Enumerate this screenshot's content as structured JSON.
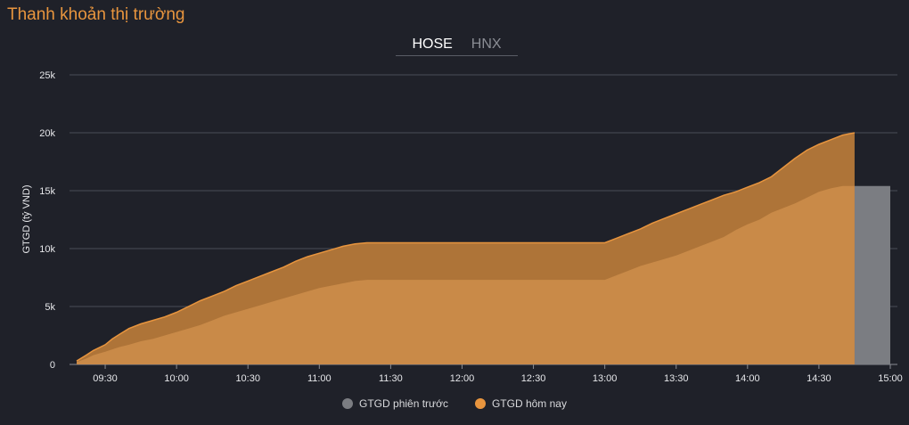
{
  "title": "Thanh khoản thị trường",
  "tabs": [
    {
      "label": "HOSE",
      "active": true
    },
    {
      "label": "HNX",
      "active": false
    }
  ],
  "colors": {
    "today": "#e8953e",
    "today_area": "#c98a48",
    "today_band": "#ae7438",
    "previous": "#7b7d82"
  },
  "chart_data": {
    "type": "area",
    "ylabel": "GTGD (tỷ VND)",
    "ylim": [
      0,
      25000
    ],
    "yticks": [
      0,
      5000,
      10000,
      15000,
      20000,
      25000
    ],
    "ytick_labels": [
      "0",
      "5k",
      "10k",
      "15k",
      "20k",
      "25k"
    ],
    "xlim": [
      555,
      903
    ],
    "xticks": [
      570,
      600,
      630,
      660,
      690,
      720,
      750,
      780,
      810,
      840,
      870,
      900
    ],
    "xtick_labels": [
      "09:30",
      "10:00",
      "10:30",
      "11:00",
      "11:30",
      "12:00",
      "12:30",
      "13:00",
      "13:30",
      "14:00",
      "14:30",
      "15:00"
    ],
    "series": [
      {
        "name": "GTGD hôm nay",
        "x": [
          558,
          562,
          565,
          570,
          573,
          576,
          580,
          585,
          590,
          595,
          600,
          605,
          610,
          615,
          620,
          625,
          630,
          635,
          640,
          645,
          650,
          655,
          660,
          665,
          670,
          675,
          680,
          685,
          690,
          700,
          720,
          740,
          760,
          780,
          785,
          790,
          795,
          800,
          805,
          810,
          815,
          820,
          825,
          830,
          835,
          840,
          845,
          850,
          855,
          860,
          865,
          870,
          875,
          880,
          885
        ],
        "values": [
          300,
          800,
          1200,
          1700,
          2200,
          2600,
          3100,
          3500,
          3800,
          4100,
          4500,
          5000,
          5500,
          5900,
          6300,
          6800,
          7200,
          7600,
          8000,
          8400,
          8900,
          9300,
          9600,
          9900,
          10200,
          10400,
          10500,
          10500,
          10500,
          10500,
          10500,
          10500,
          10500,
          10500,
          10900,
          11300,
          11700,
          12200,
          12600,
          13000,
          13400,
          13800,
          14200,
          14600,
          14900,
          15300,
          15700,
          16200,
          17000,
          17800,
          18500,
          19000,
          19400,
          19800,
          20000
        ]
      },
      {
        "name": "GTGD phiên trước",
        "x": [
          558,
          562,
          565,
          570,
          573,
          576,
          580,
          585,
          590,
          595,
          600,
          605,
          610,
          615,
          620,
          625,
          630,
          635,
          640,
          645,
          650,
          655,
          660,
          665,
          670,
          675,
          680,
          685,
          690,
          700,
          720,
          740,
          760,
          780,
          785,
          790,
          795,
          800,
          805,
          810,
          815,
          820,
          825,
          830,
          835,
          840,
          845,
          850,
          855,
          860,
          865,
          870,
          875,
          880,
          885,
          900
        ],
        "values": [
          200,
          500,
          800,
          1100,
          1300,
          1500,
          1700,
          2000,
          2200,
          2500,
          2800,
          3100,
          3400,
          3800,
          4200,
          4500,
          4800,
          5100,
          5400,
          5700,
          6000,
          6300,
          6600,
          6800,
          7000,
          7200,
          7300,
          7300,
          7300,
          7300,
          7300,
          7300,
          7300,
          7300,
          7700,
          8100,
          8500,
          8800,
          9100,
          9400,
          9800,
          10200,
          10600,
          11000,
          11600,
          12100,
          12500,
          13100,
          13500,
          13900,
          14400,
          14900,
          15200,
          15400,
          15400,
          15400
        ]
      }
    ],
    "legend": [
      {
        "name": "GTGD phiên trước",
        "color_key": "previous"
      },
      {
        "name": "GTGD hôm nay",
        "color_key": "today"
      }
    ],
    "grid": true
  }
}
